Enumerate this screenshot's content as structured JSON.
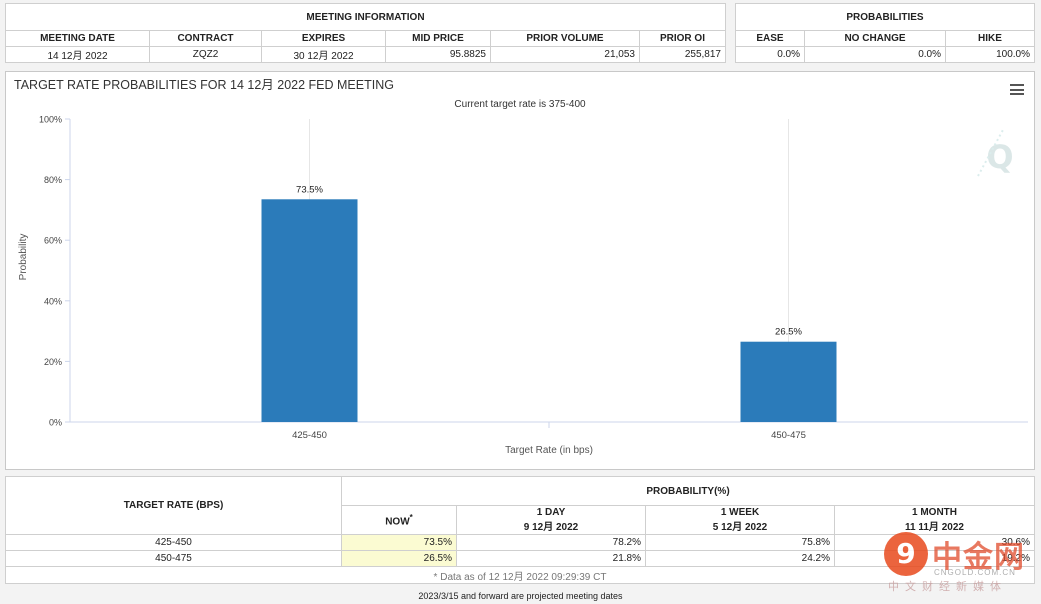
{
  "meeting_info": {
    "title": "MEETING INFORMATION",
    "headers": [
      "MEETING DATE",
      "CONTRACT",
      "EXPIRES",
      "MID PRICE",
      "PRIOR VOLUME",
      "PRIOR OI"
    ],
    "values": [
      "14 12月 2022",
      "ZQZ2",
      "30 12月 2022",
      "95.8825",
      "21,053",
      "255,817"
    ]
  },
  "probabilities": {
    "title": "PROBABILITIES",
    "headers": [
      "EASE",
      "NO CHANGE",
      "HIKE"
    ],
    "values": [
      "0.0%",
      "0.0%",
      "100.0%"
    ]
  },
  "chart_data": {
    "type": "bar",
    "title": "TARGET RATE PROBABILITIES FOR 14 12月 2022 FED MEETING",
    "subtitle": "Current target rate is 375-400",
    "xlabel": "Target Rate (in bps)",
    "ylabel": "Probability",
    "categories": [
      "425-450",
      "450-475"
    ],
    "values": [
      73.5,
      26.5
    ],
    "data_labels": [
      "73.5%",
      "26.5%"
    ],
    "yticks": [
      "0%",
      "20%",
      "40%",
      "60%",
      "80%",
      "100%"
    ],
    "ylim": [
      0,
      100
    ],
    "grid": "vertical",
    "bar_color": "#2b7bba"
  },
  "prob_table": {
    "col_header": "TARGET RATE (BPS)",
    "group_header": "PROBABILITY(%)",
    "now_label": "NOW",
    "now_mark": "*",
    "periods": [
      {
        "label": "1 DAY",
        "date": "9 12月 2022"
      },
      {
        "label": "1 WEEK",
        "date": "5 12月 2022"
      },
      {
        "label": "1 MONTH",
        "date": "11 11月 2022"
      }
    ],
    "rows": [
      {
        "rate": "425-450",
        "now": "73.5%",
        "day": "78.2%",
        "week": "75.8%",
        "month": "30.6%"
      },
      {
        "rate": "450-475",
        "now": "26.5%",
        "day": "21.8%",
        "week": "24.2%",
        "month": "19.2%"
      }
    ],
    "footnote": "* Data as of 12 12月 2022 09:29:39 CT"
  },
  "footer": "2023/3/15 and forward are projected meeting dates",
  "watermark": {
    "logo_glyph": "9",
    "name": "中金网",
    "domain": "CNGOLD.COM.CN",
    "slogan": "中文财经新媒体"
  },
  "icons": {
    "menu": "menu-icon",
    "chart_logo": "q-logo-icon"
  }
}
